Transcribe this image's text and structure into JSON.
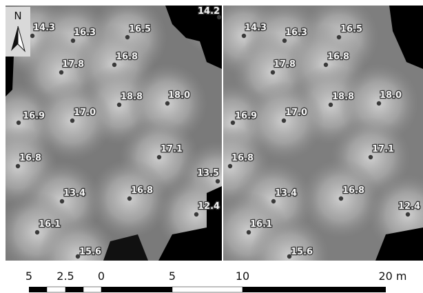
{
  "north_label": "N",
  "panels": [
    {
      "labels": [
        "14.3",
        "16.3",
        "16.5",
        "14.2",
        "17.8",
        "16.8",
        "18.8",
        "18.0",
        "16.9",
        "17.0",
        "17.1",
        "16.8",
        "13.5",
        "13.4",
        "16.8",
        "12.4",
        "16.1",
        "15.6"
      ]
    },
    {
      "labels": [
        "14.3",
        "16.3",
        "16.5",
        "17.8",
        "16.8",
        "18.8",
        "18.0",
        "16.9",
        "17.0",
        "17.1",
        "16.8",
        "13.4",
        "16.8",
        "12.4",
        "16.1",
        "15.6"
      ]
    }
  ],
  "scale_bar": {
    "labels": [
      "5",
      "2.5",
      "0",
      "5",
      "10",
      "20 m"
    ]
  }
}
